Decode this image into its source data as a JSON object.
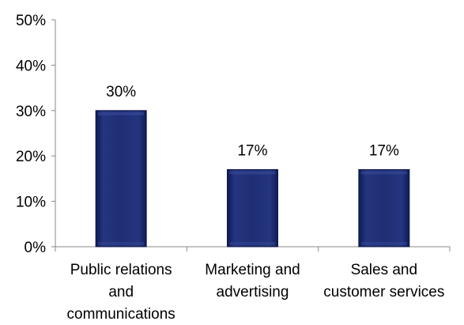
{
  "chart_data": {
    "type": "bar",
    "categories": [
      [
        "Public relations",
        "and",
        "communications"
      ],
      [
        "Marketing and",
        "advertising"
      ],
      [
        "Sales and",
        "customer services"
      ]
    ],
    "values": [
      30,
      17,
      17
    ],
    "data_labels": [
      "30%",
      "17%",
      "17%"
    ],
    "ylim": [
      0,
      50
    ],
    "yticks": [
      0,
      10,
      20,
      30,
      40,
      50
    ],
    "ytick_labels": [
      "0%",
      "10%",
      "20%",
      "30%",
      "40%",
      "50%"
    ],
    "grid": false,
    "legend": "none",
    "colors": {
      "bar": "#1c2a6b",
      "bar_edge": "#0f1a4a",
      "axis": "#888888"
    }
  }
}
